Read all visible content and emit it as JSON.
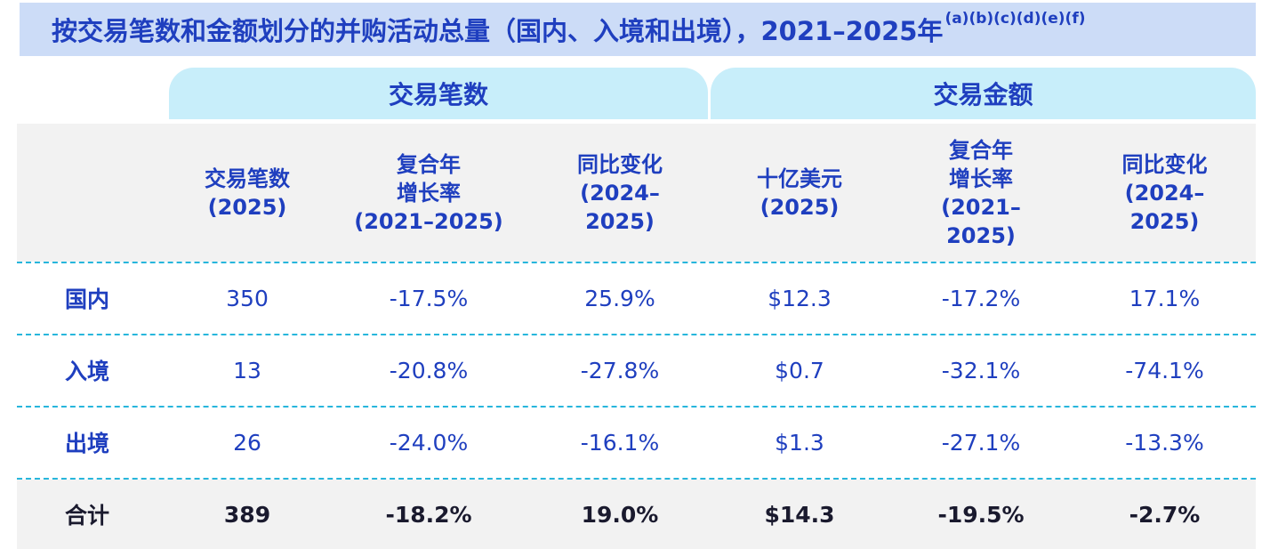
{
  "title": "按交易笔数和金额划分的并购活动总量（国内、入境和出境），2021–2025年",
  "title_footnotes": "(a)(b)(c)(d)(e)(f)",
  "groups": {
    "count": "交易笔数",
    "value": "交易金额"
  },
  "columns": [
    "交易笔数\n(2025)",
    "复合年\n增长率\n(2021–2025)",
    "同比变化\n(2024–\n2025)",
    "十亿美元\n(2025)",
    "复合年\n增长率\n(2021–\n2025)",
    "同比变化\n(2024–\n2025)"
  ],
  "rows": [
    {
      "label": "国内",
      "values": [
        "350",
        "-17.5%",
        "25.9%",
        "$12.3",
        "-17.2%",
        "17.1%"
      ]
    },
    {
      "label": "入境",
      "values": [
        "13",
        "-20.8%",
        "-27.8%",
        "$0.7",
        "-32.1%",
        "-74.1%"
      ]
    },
    {
      "label": "出境",
      "values": [
        "26",
        "-24.0%",
        "-16.1%",
        "$1.3",
        "-27.1%",
        "-13.3%"
      ]
    },
    {
      "label": "合计",
      "values": [
        "389",
        "-18.2%",
        "19.0%",
        "$14.3",
        "-19.5%",
        "-2.7%"
      ]
    }
  ]
}
